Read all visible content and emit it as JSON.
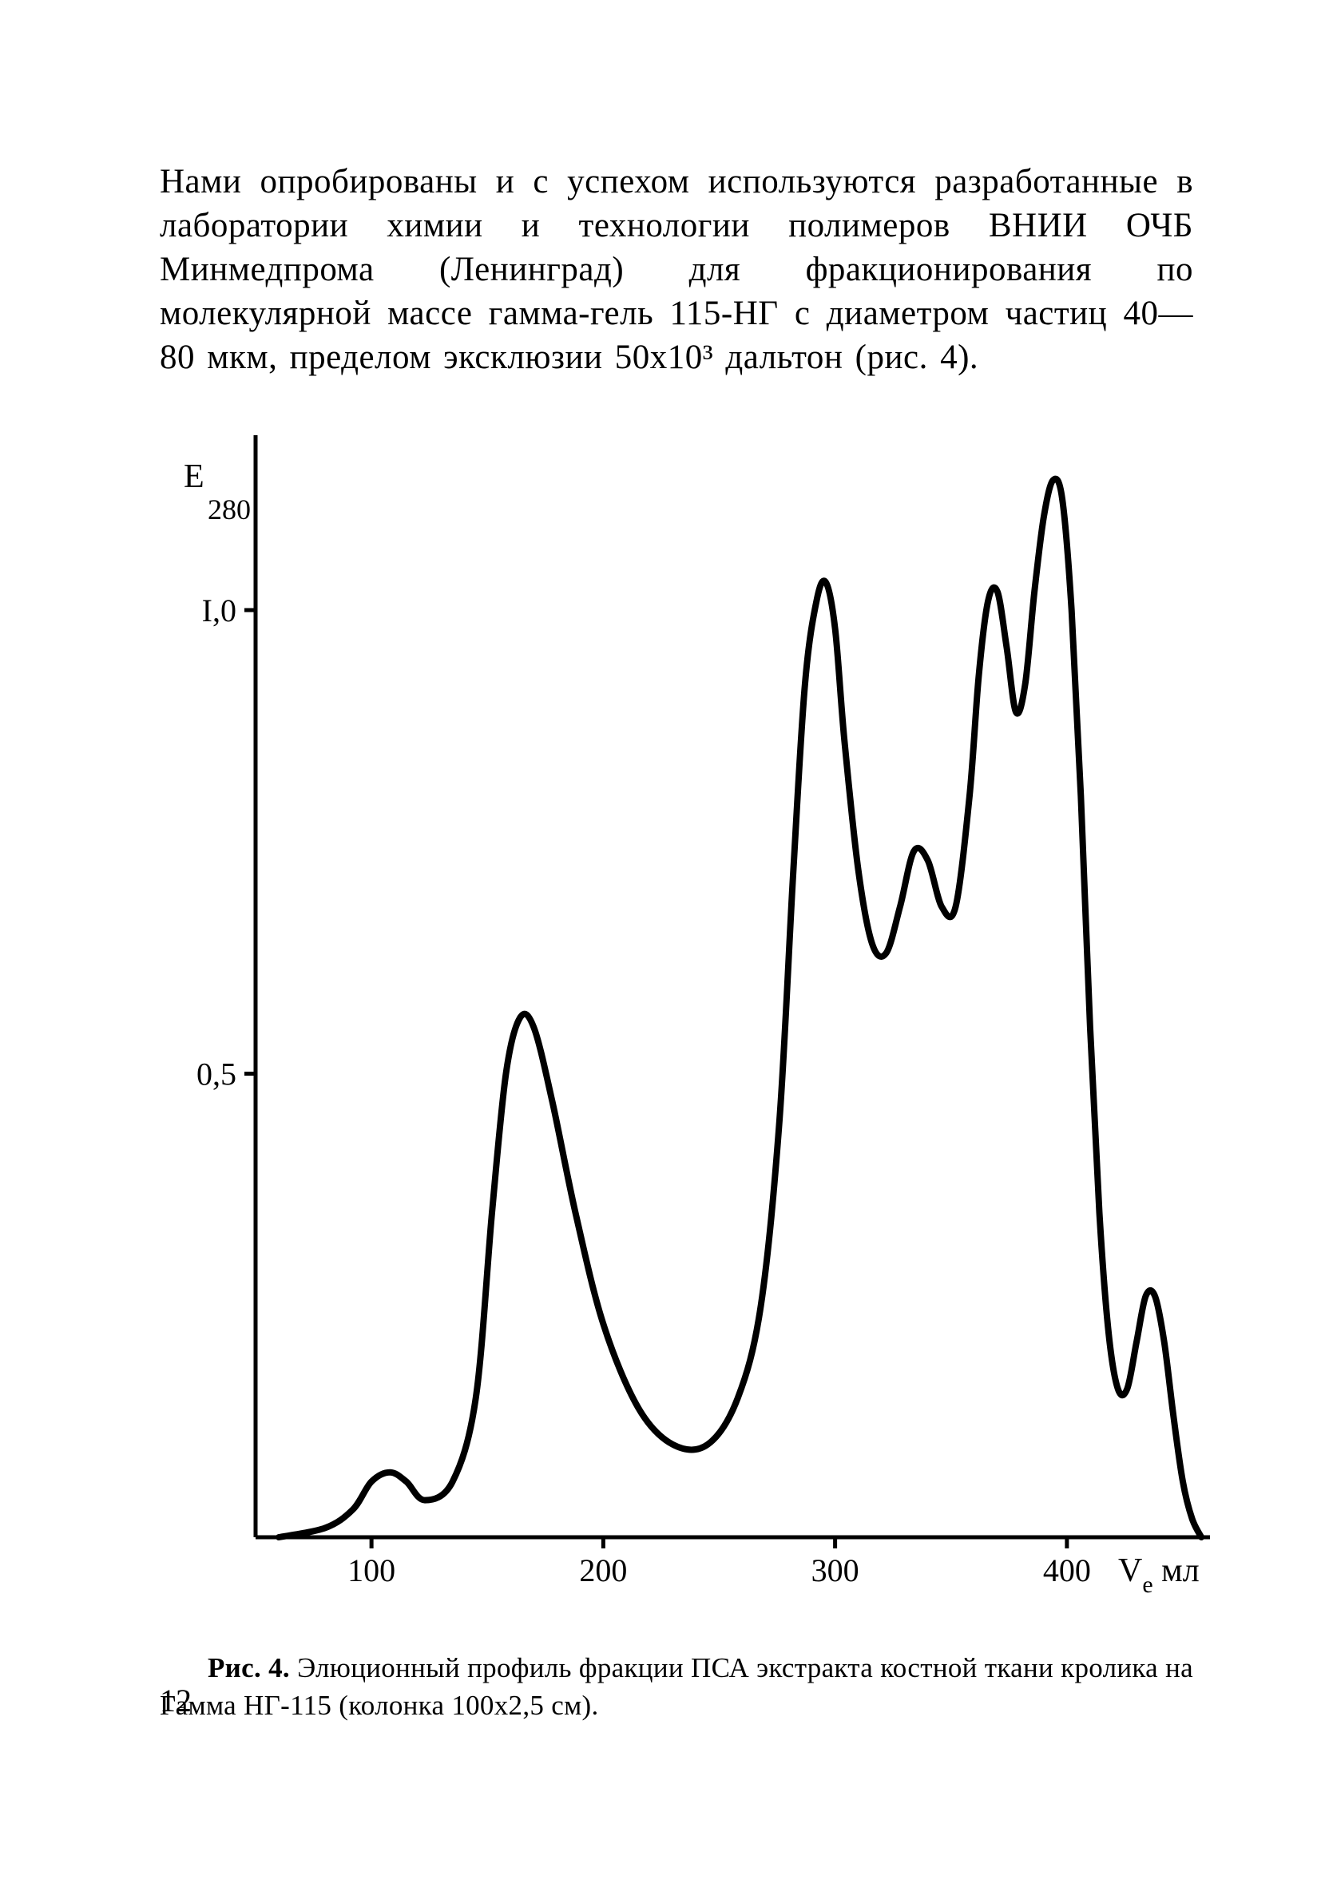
{
  "paragraph": "Нами опробированы и с успехом используются разработанные в лаборатории химии и технологии полимеров ВНИИ ОЧБ Минмедпрома (Ленинград) для фракционирования по молекулярной массе гамма-гель 115-НГ с диаметром частиц 40—80 мкм, пределом эксклюзии 50x10³ дальтон (рис. 4).",
  "caption_bold": "Рис. 4.",
  "caption_rest": " Элюционный профиль фракции ПСА экстракта костной ткани кролика на Гамма НГ-115 (колонка 100x2,5 см).",
  "page_number": "12",
  "chart": {
    "type": "line",
    "background_color": "#ffffff",
    "line_color": "#000000",
    "axis_color": "#000000",
    "line_width": 8,
    "axis_width": 5,
    "xlabel": "Vₑ мл",
    "xlabel_parts": {
      "base": "V",
      "sub": "e",
      "tail": " мл"
    },
    "ylabel_top": "E",
    "ylabel_sub": "280",
    "x_ticks": [
      100,
      200,
      300,
      400
    ],
    "x_tick_labels": [
      "100",
      "200",
      "300",
      "400"
    ],
    "y_ticks": [
      0.5,
      1.0
    ],
    "y_tick_labels": [
      "0,5",
      "I,0"
    ],
    "tick_fontsize": 40,
    "label_fontsize": 42,
    "sub_fontsize": 30,
    "xlim": [
      50,
      460
    ],
    "ylim": [
      0,
      1.18
    ],
    "points": [
      [
        60,
        0.0
      ],
      [
        80,
        0.01
      ],
      [
        92,
        0.03
      ],
      [
        100,
        0.06
      ],
      [
        108,
        0.07
      ],
      [
        115,
        0.06
      ],
      [
        123,
        0.04
      ],
      [
        135,
        0.06
      ],
      [
        145,
        0.15
      ],
      [
        152,
        0.35
      ],
      [
        158,
        0.5
      ],
      [
        164,
        0.56
      ],
      [
        170,
        0.55
      ],
      [
        178,
        0.47
      ],
      [
        188,
        0.35
      ],
      [
        200,
        0.23
      ],
      [
        215,
        0.14
      ],
      [
        230,
        0.1
      ],
      [
        245,
        0.1
      ],
      [
        258,
        0.15
      ],
      [
        268,
        0.25
      ],
      [
        276,
        0.45
      ],
      [
        282,
        0.72
      ],
      [
        287,
        0.92
      ],
      [
        292,
        1.01
      ],
      [
        296,
        1.03
      ],
      [
        300,
        0.98
      ],
      [
        304,
        0.86
      ],
      [
        310,
        0.72
      ],
      [
        316,
        0.64
      ],
      [
        322,
        0.63
      ],
      [
        328,
        0.68
      ],
      [
        334,
        0.74
      ],
      [
        340,
        0.73
      ],
      [
        346,
        0.68
      ],
      [
        352,
        0.68
      ],
      [
        358,
        0.8
      ],
      [
        362,
        0.93
      ],
      [
        366,
        1.01
      ],
      [
        370,
        1.02
      ],
      [
        374,
        0.96
      ],
      [
        378,
        0.89
      ],
      [
        382,
        0.92
      ],
      [
        386,
        1.02
      ],
      [
        390,
        1.1
      ],
      [
        394,
        1.14
      ],
      [
        398,
        1.12
      ],
      [
        402,
        1.0
      ],
      [
        406,
        0.8
      ],
      [
        410,
        0.55
      ],
      [
        414,
        0.35
      ],
      [
        418,
        0.22
      ],
      [
        422,
        0.16
      ],
      [
        426,
        0.16
      ],
      [
        430,
        0.21
      ],
      [
        434,
        0.26
      ],
      [
        438,
        0.26
      ],
      [
        442,
        0.21
      ],
      [
        446,
        0.13
      ],
      [
        450,
        0.06
      ],
      [
        454,
        0.02
      ],
      [
        458,
        0.0
      ]
    ]
  }
}
